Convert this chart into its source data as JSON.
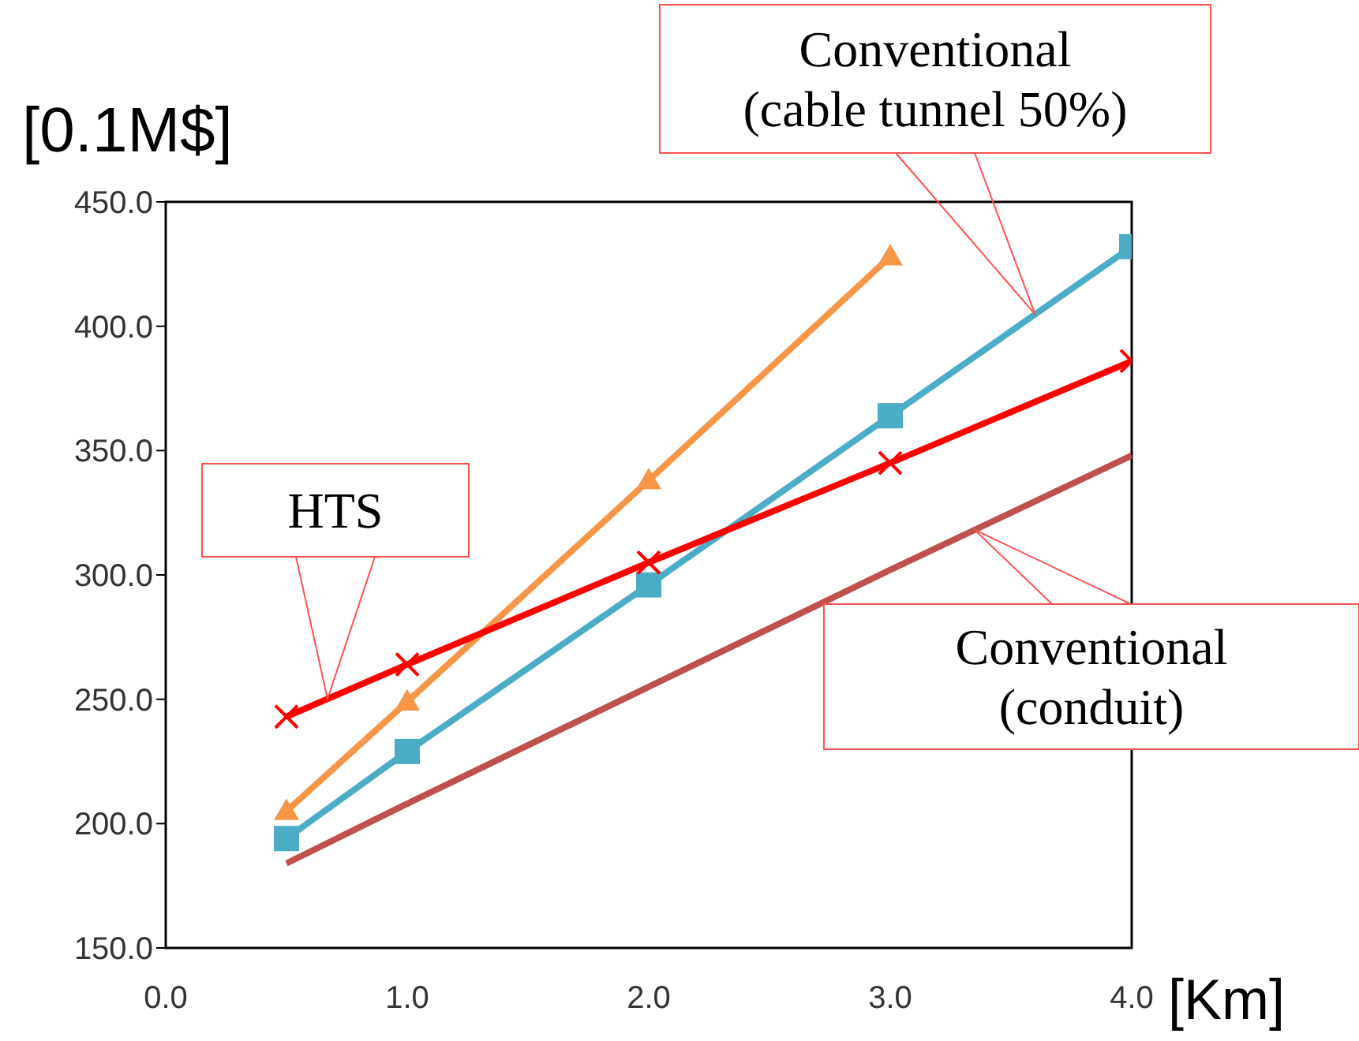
{
  "chart_data": {
    "type": "line",
    "xlabel": "[Km]",
    "ylabel": "[0.1M$]",
    "x": [
      0.5,
      1,
      2,
      3,
      4
    ],
    "xlim": [
      0,
      4
    ],
    "xticks": [
      {
        "value": 0,
        "label": "0.0"
      },
      {
        "value": 1,
        "label": "1.0"
      },
      {
        "value": 2,
        "label": "2.0"
      },
      {
        "value": 3,
        "label": "3.0"
      },
      {
        "value": 4,
        "label": "4.0"
      }
    ],
    "ylim": [
      150,
      450
    ],
    "yticks": [
      {
        "value": 150,
        "label": "150.0"
      },
      {
        "value": 200,
        "label": "200.0"
      },
      {
        "value": 250,
        "label": "250.0"
      },
      {
        "value": 300,
        "label": "300.0"
      },
      {
        "value": 350,
        "label": "350.0"
      },
      {
        "value": 400,
        "label": "400.0"
      },
      {
        "value": 450,
        "label": "450.0"
      }
    ],
    "grid": false,
    "series": [
      {
        "color": "#f79646",
        "marker": "triangle",
        "values": [
          205,
          249,
          338,
          428,
          null
        ]
      },
      {
        "name": "Conventional (cable tunnel 50%)",
        "color": "#4bacc6",
        "marker": "square",
        "values": [
          194,
          229,
          296,
          364,
          432
        ]
      },
      {
        "name": "HTS",
        "color": "#ff0000",
        "marker": "cross",
        "values": [
          243,
          264,
          305,
          345,
          386
        ]
      },
      {
        "name": "Conventional (conduit)",
        "color": "#c0504d",
        "marker": "none",
        "values": [
          184,
          208,
          255,
          302,
          348
        ]
      }
    ]
  }
}
